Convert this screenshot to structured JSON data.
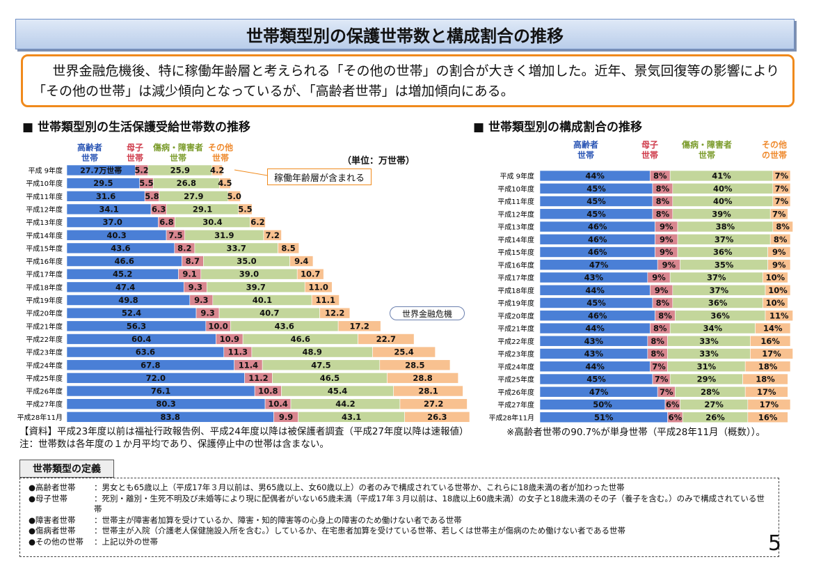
{
  "title": "世帯類型別の保護世帯数と構成割合の推移",
  "summary": "世界金融危機後、特に稼働年齢層と考えられる「その他の世帯」の割合が大きく増加した。近年、景気回復等の影響により「その他の世帯」は減少傾向となっているが、「高齢者世帯」は増加傾向にある。",
  "left_section_title": "■ 世帯類型別の生活保護受給世帯数の推移",
  "right_section_title": "■ 世帯類型別の構成割合の推移",
  "unit_label": "（単位：万世帯）",
  "callout_working_age": "稼働年齢層が含まれる",
  "callout_crisis": "世界金融危機",
  "legend": {
    "elderly": "高齢者\n世帯",
    "single_mother": "母子\n世帯",
    "disabled": "傷病・障害者\n世帯",
    "other": "その他\n世帯",
    "other_right": "その他\nの世帯"
  },
  "colors": {
    "elderly": "#4a7fd6",
    "single_mother": "#d8868f",
    "disabled": "#c3d69b",
    "other": "#f8c190"
  },
  "chart_data": [
    {
      "type": "bar",
      "orientation": "horizontal-stacked",
      "title": "世帯類型別の生活保護受給世帯数の推移",
      "unit": "万世帯",
      "first_label_suffix": "万世帯",
      "categories": [
        "平成 9年度",
        "平成10年度",
        "平成11年度",
        "平成12年度",
        "平成13年度",
        "平成14年度",
        "平成15年度",
        "平成16年度",
        "平成17年度",
        "平成18年度",
        "平成19年度",
        "平成20年度",
        "平成21年度",
        "平成22年度",
        "平成23年度",
        "平成24年度",
        "平成25年度",
        "平成26年度",
        "平成27年度",
        "平成28年11月"
      ],
      "series": [
        {
          "name": "高齢者世帯",
          "values": [
            27.7,
            29.5,
            31.6,
            34.1,
            37.0,
            40.3,
            43.6,
            46.6,
            45.2,
            47.4,
            49.8,
            52.4,
            56.3,
            60.4,
            63.6,
            67.8,
            72.0,
            76.1,
            80.3,
            83.8
          ]
        },
        {
          "name": "母子世帯",
          "values": [
            5.2,
            5.5,
            5.8,
            6.3,
            6.8,
            7.5,
            8.2,
            8.7,
            9.1,
            9.3,
            9.3,
            9.3,
            10.0,
            10.9,
            11.3,
            11.4,
            11.2,
            10.8,
            10.4,
            9.9
          ]
        },
        {
          "name": "傷病・障害者世帯",
          "values": [
            25.9,
            26.8,
            27.9,
            29.1,
            30.4,
            31.9,
            33.7,
            35.0,
            39.0,
            39.7,
            40.1,
            40.7,
            43.6,
            46.6,
            48.9,
            47.5,
            46.5,
            45.4,
            44.2,
            43.1
          ]
        },
        {
          "name": "その他の世帯",
          "values": [
            4.2,
            4.5,
            5.0,
            5.5,
            6.2,
            7.2,
            8.5,
            9.4,
            10.7,
            11.0,
            11.1,
            12.2,
            17.2,
            22.7,
            25.4,
            28.5,
            28.8,
            28.1,
            27.2,
            26.3
          ]
        }
      ]
    },
    {
      "type": "bar",
      "orientation": "horizontal-stacked-percent",
      "title": "世帯類型別の構成割合の推移",
      "unit": "%",
      "categories": [
        "平成 9年度",
        "平成10年度",
        "平成11年度",
        "平成12年度",
        "平成13年度",
        "平成14年度",
        "平成15年度",
        "平成16年度",
        "平成17年度",
        "平成18年度",
        "平成19年度",
        "平成20年度",
        "平成21年度",
        "平成22年度",
        "平成23年度",
        "平成24年度",
        "平成25年度",
        "平成26年度",
        "平成27年度",
        "平成28年11月"
      ],
      "series": [
        {
          "name": "高齢者世帯",
          "values": [
            44,
            45,
            45,
            45,
            46,
            46,
            46,
            47,
            43,
            44,
            45,
            46,
            44,
            43,
            43,
            44,
            45,
            47,
            50,
            51
          ]
        },
        {
          "name": "母子世帯",
          "values": [
            8,
            8,
            8,
            8,
            9,
            9,
            9,
            9,
            9,
            9,
            8,
            8,
            8,
            8,
            8,
            7,
            7,
            7,
            6,
            6
          ]
        },
        {
          "name": "傷病・障害者世帯",
          "values": [
            41,
            40,
            40,
            39,
            38,
            37,
            36,
            35,
            37,
            37,
            36,
            36,
            34,
            33,
            33,
            31,
            29,
            28,
            27,
            26
          ]
        },
        {
          "name": "その他の世帯",
          "values": [
            7,
            7,
            7,
            7,
            8,
            8,
            9,
            9,
            10,
            10,
            10,
            11,
            14,
            16,
            17,
            18,
            18,
            17,
            17,
            16
          ]
        }
      ]
    }
  ],
  "source": "【資料】平成23年度以前は福祉行政報告例、平成24年度以降は被保護者調査（平成27年度以降は速報値）",
  "note_left": "注：世帯数は各年度の１か月平均であり、保護停止中の世帯は含まない。",
  "note_right": "※高齢者世帯の90.7%が単身世帯（平成28年11月（概数））。",
  "definitions_title": "世帯類型の定義",
  "definitions": [
    {
      "term": "●高齢者世帯",
      "text": "：男女とも65歳以上（平成17年３月以前は、男65歳以上、女60歳以上）の者のみで構成されている世帯か、これらに18歳未満の者が加わった世帯"
    },
    {
      "term": "●母子世帯",
      "text": "：死別・離別・生死不明及び未婚等により現に配偶者がいない65歳未満（平成17年３月以前は、18歳以上60歳未満）の女子と18歳未満のその子（養子を含む。）のみで構成されている世帯"
    },
    {
      "term": "●障害者世帯",
      "text": "：世帯主が障害者加算を受けているか、障害・知的障害等の心身上の障害のため働けない者である世帯"
    },
    {
      "term": "●傷病者世帯",
      "text": "：世帯主が入院（介護老人保健施設入所を含む。）しているか、在宅患者加算を受けている世帯、若しくは世帯主が傷病のため働けない者である世帯"
    },
    {
      "term": "●その他の世帯",
      "text": "：上記以外の世帯"
    }
  ],
  "page_number": "5"
}
